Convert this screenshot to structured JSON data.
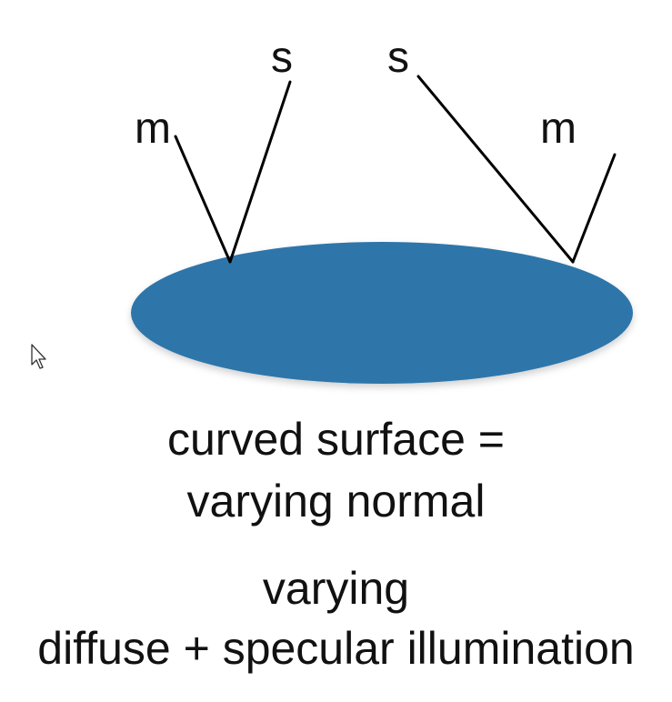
{
  "diagram": {
    "labels": {
      "m_left": "m",
      "s_left": "s",
      "s_right": "s",
      "m_right": "m"
    },
    "surface_color": "#2e76aa",
    "line_color": "#000000"
  },
  "captions": {
    "line1": "curved surface =",
    "line2": "varying normal",
    "line3": "varying",
    "line4": "diffuse + specular illumination"
  },
  "cursor": {
    "icon": "mouse-pointer-icon"
  }
}
